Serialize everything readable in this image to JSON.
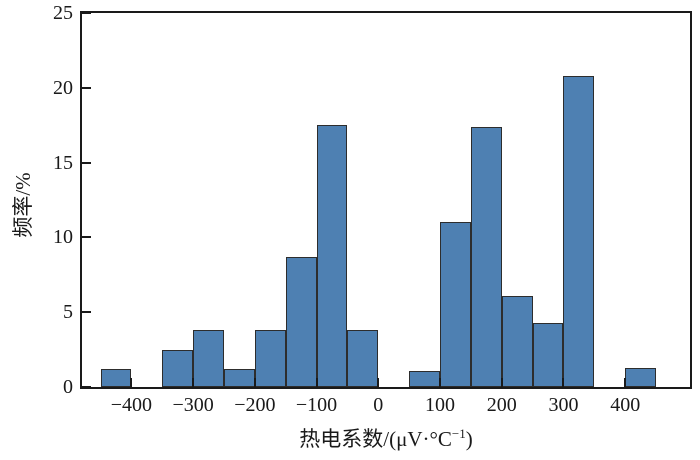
{
  "figure": {
    "background": "#ffffff",
    "bar_fill": "#4e80b2",
    "bar_edge": "#2d2d2d",
    "axis_color": "#1a1a1a"
  },
  "chart_data": {
    "type": "bar",
    "title": "",
    "xlabel": "热电系数/(μV·°C⁻¹)",
    "xlabel_parts": {
      "prefix": "热电系数/(μV·°C",
      "sup": "−1",
      "suffix": ")"
    },
    "ylabel": "频率/%",
    "xlim": [
      -480,
      505
    ],
    "ylim": [
      0,
      25
    ],
    "grid": false,
    "legend": null,
    "x_ticks": [
      -400,
      -300,
      -200,
      -100,
      0,
      100,
      200,
      300,
      400
    ],
    "x_tick_labels": [
      "−400",
      "−300",
      "−200",
      "−100",
      "0",
      "100",
      "200",
      "300",
      "400"
    ],
    "y_ticks": [
      0,
      5,
      10,
      15,
      20,
      25
    ],
    "y_tick_labels": [
      "0",
      "5",
      "10",
      "15",
      "20",
      "25"
    ],
    "bin_width": 50,
    "bars": [
      {
        "x0": -450,
        "value": 1.2
      },
      {
        "x0": -350,
        "value": 2.5
      },
      {
        "x0": -300,
        "value": 3.8
      },
      {
        "x0": -250,
        "value": 1.2
      },
      {
        "x0": -200,
        "value": 3.8
      },
      {
        "x0": -150,
        "value": 8.7
      },
      {
        "x0": -100,
        "value": 17.5
      },
      {
        "x0": -50,
        "value": 3.8
      },
      {
        "x0": 50,
        "value": 1.1
      },
      {
        "x0": 100,
        "value": 11.0
      },
      {
        "x0": 150,
        "value": 17.4
      },
      {
        "x0": 200,
        "value": 6.1
      },
      {
        "x0": 250,
        "value": 4.3
      },
      {
        "x0": 300,
        "value": 20.8
      },
      {
        "x0": 400,
        "value": 1.3
      }
    ]
  }
}
